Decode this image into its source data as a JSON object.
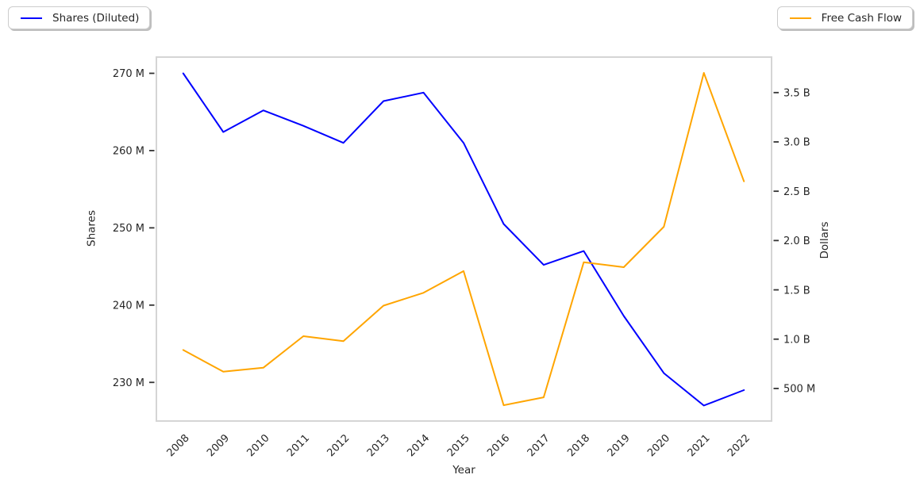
{
  "legend": {
    "left": {
      "label": "Shares (Diluted)"
    },
    "right": {
      "label": "Free Cash Flow"
    }
  },
  "colors": {
    "shares_line": "#0000ff",
    "fcf_line": "#ffa500",
    "spine": "#d5d5d5",
    "tick_mark": "#333333",
    "text": "#262626",
    "background": "#ffffff"
  },
  "chart_data": {
    "type": "line",
    "title": "",
    "xlabel": "Year",
    "grid": false,
    "x": [
      2008,
      2009,
      2010,
      2011,
      2012,
      2013,
      2014,
      2015,
      2016,
      2017,
      2018,
      2019,
      2020,
      2021,
      2022
    ],
    "x_axis": {
      "label": "Year",
      "tick_labels": [
        "2008",
        "2009",
        "2010",
        "2011",
        "2012",
        "2013",
        "2014",
        "2015",
        "2016",
        "2017",
        "2018",
        "2019",
        "2020",
        "2021",
        "2022"
      ],
      "range": [
        2007.33,
        2022.69
      ],
      "tick_rotation_deg": 45
    },
    "left_axis": {
      "label": "Shares",
      "tick_labels": [
        "230 M",
        "240 M",
        "250 M",
        "260 M",
        "270 M"
      ],
      "tick_values": [
        230,
        240,
        250,
        260,
        270
      ],
      "unit": "millions of shares",
      "range": [
        225.0,
        272.1
      ]
    },
    "right_axis": {
      "label": "Dollars",
      "tick_labels": [
        "500 M",
        "1.0 B",
        "1.5 B",
        "2.0 B",
        "2.5 B",
        "3.0 B",
        "3.5 B"
      ],
      "tick_values": [
        0.5,
        1.0,
        1.5,
        2.0,
        2.5,
        3.0,
        3.5
      ],
      "unit": "billions of dollars",
      "range": [
        0.17,
        3.86
      ]
    },
    "series": [
      {
        "name": "Shares (Diluted)",
        "axis": "left",
        "color": "#0000ff",
        "values_unit": "millions",
        "values": [
          270.0,
          262.4,
          265.2,
          263.2,
          261.0,
          266.4,
          267.5,
          261.0,
          250.5,
          245.2,
          247.0,
          238.6,
          231.2,
          227.0,
          229.0
        ]
      },
      {
        "name": "Free Cash Flow",
        "axis": "right",
        "color": "#ffa500",
        "values_unit": "billions",
        "values": [
          0.89,
          0.67,
          0.71,
          1.03,
          0.98,
          1.34,
          1.47,
          1.69,
          0.33,
          0.41,
          1.78,
          1.73,
          2.14,
          3.7,
          2.6
        ]
      }
    ],
    "legend_positions": [
      "upper left outside",
      "upper right outside"
    ]
  }
}
